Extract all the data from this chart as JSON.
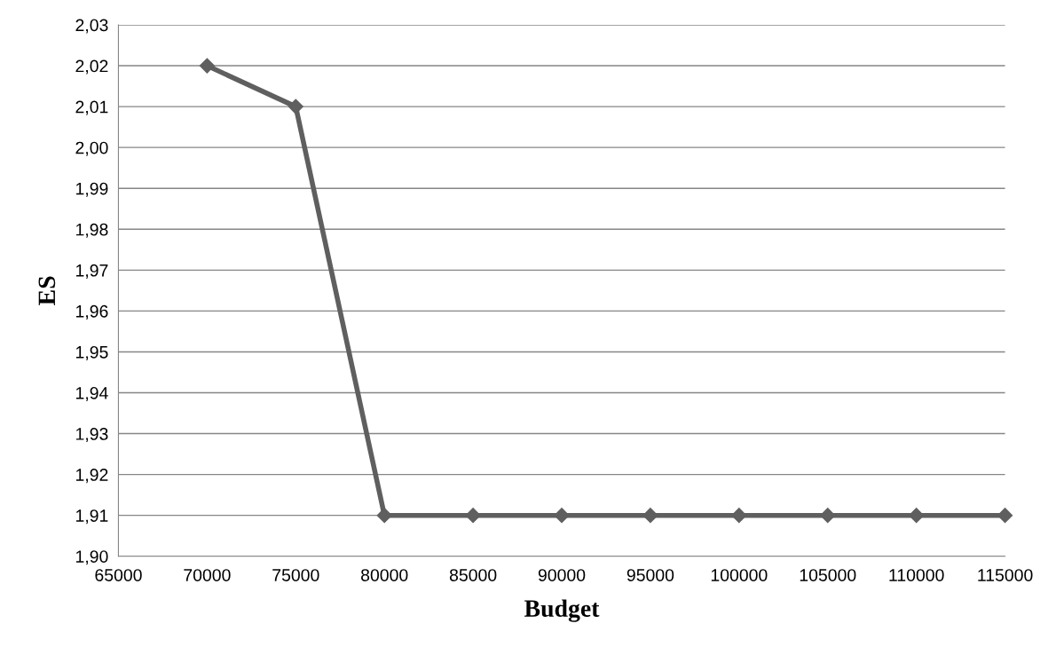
{
  "chart_data": {
    "type": "line",
    "xlabel": "Budget",
    "ylabel": "ES",
    "x": [
      70000,
      75000,
      80000,
      85000,
      90000,
      95000,
      100000,
      105000,
      110000,
      115000
    ],
    "series": [
      {
        "color": "#5f5f5f",
        "values": [
          2.02,
          2.01,
          1.91,
          1.91,
          1.91,
          1.91,
          1.91,
          1.91,
          1.91,
          1.91
        ]
      }
    ],
    "xlim": [
      65000,
      115000
    ],
    "xticks": [
      65000,
      70000,
      75000,
      80000,
      85000,
      90000,
      95000,
      100000,
      105000,
      110000,
      115000
    ],
    "ylim": [
      1.9,
      2.03
    ],
    "yticks": [
      {
        "value": 1.9,
        "label": "1,90"
      },
      {
        "value": 1.91,
        "label": "1,91"
      },
      {
        "value": 1.92,
        "label": "1,92"
      },
      {
        "value": 1.93,
        "label": "1,93"
      },
      {
        "value": 1.94,
        "label": "1,94"
      },
      {
        "value": 1.95,
        "label": "1,95"
      },
      {
        "value": 1.96,
        "label": "1,96"
      },
      {
        "value": 1.97,
        "label": "1,97"
      },
      {
        "value": 1.98,
        "label": "1,98"
      },
      {
        "value": 1.99,
        "label": "1,99"
      },
      {
        "value": 2.0,
        "label": "2,00"
      },
      {
        "value": 2.01,
        "label": "2,01"
      },
      {
        "value": 2.02,
        "label": "2,02"
      },
      {
        "value": 2.03,
        "label": "2,03"
      }
    ],
    "grid": "y",
    "marker": "diamond",
    "line_style": "solid"
  }
}
